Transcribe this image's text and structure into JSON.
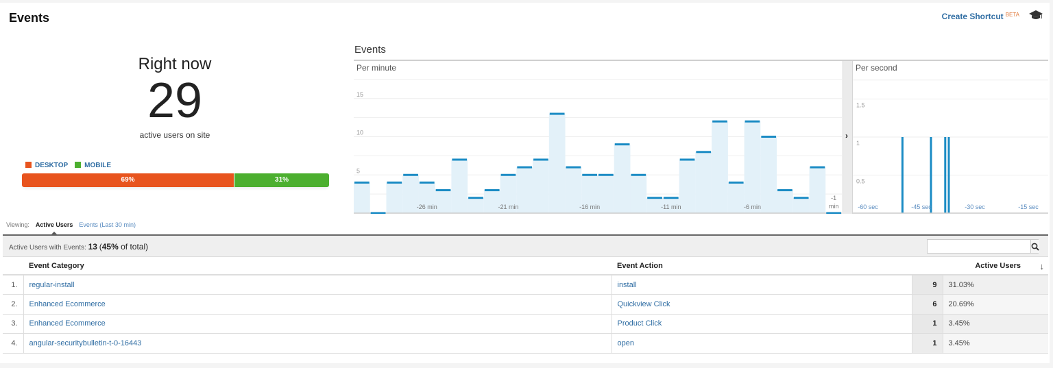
{
  "header": {
    "title": "Events",
    "shortcut_label": "Create Shortcut",
    "shortcut_badge": "BETA",
    "education_icon": "graduation-cap-icon"
  },
  "right_now": {
    "label": "Right now",
    "count": "29",
    "subtitle": "active users on site"
  },
  "devices": {
    "legend": [
      {
        "label": "DESKTOP",
        "color": "#e8541e"
      },
      {
        "label": "MOBILE",
        "color": "#4caf2f"
      }
    ],
    "segments": [
      {
        "label": "69%",
        "percent": 69,
        "color": "#e8541e"
      },
      {
        "label": "31%",
        "percent": 31,
        "color": "#4caf2f"
      }
    ]
  },
  "chart_data": [
    {
      "type": "bar",
      "title": "Events",
      "subtitle": "Per minute",
      "xlabel": "",
      "ylabel": "",
      "ylim": [
        0,
        20
      ],
      "yticks": [
        5,
        10,
        15
      ],
      "grid": true,
      "x_tick_labels": [
        "-26 min",
        "-21 min",
        "-16 min",
        "-11 min",
        "-6 min",
        "-1 min"
      ],
      "categories": [
        "-30",
        "-29",
        "-28",
        "-27",
        "-26",
        "-25",
        "-24",
        "-23",
        "-22",
        "-21",
        "-20",
        "-19",
        "-18",
        "-17",
        "-16",
        "-15",
        "-14",
        "-13",
        "-12",
        "-11",
        "-10",
        "-9",
        "-8",
        "-7",
        "-6",
        "-5",
        "-4",
        "-3",
        "-2",
        "-1"
      ],
      "values": [
        4,
        0,
        4,
        5,
        4,
        3,
        7,
        2,
        3,
        5,
        6,
        7,
        13,
        6,
        5,
        5,
        9,
        5,
        2,
        2,
        7,
        8,
        12,
        4,
        12,
        10,
        3,
        2,
        6,
        0
      ],
      "color": "#1a8bc4",
      "fill": "#e3f1f9"
    },
    {
      "type": "bar",
      "title": "",
      "subtitle": "Per second",
      "ylim": [
        0,
        2
      ],
      "yticks": [
        0.5,
        1,
        1.5
      ],
      "grid": true,
      "x_tick_labels": [
        "-60 sec",
        "-45 sec",
        "-30 sec",
        "-15 sec"
      ],
      "x": [
        -53,
        -45,
        -41,
        -40
      ],
      "values": [
        1,
        1,
        1,
        1
      ],
      "color": "#1a8bc4"
    }
  ],
  "chart": {
    "title": "Events",
    "per_minute_label": "Per minute",
    "per_second_label": "Per second",
    "expand_icon": "chevron-right-icon"
  },
  "viewing": {
    "label": "Viewing:",
    "tabs": [
      {
        "label": "Active Users",
        "active": true
      },
      {
        "label": "Events (Last 30 min)",
        "active": false
      }
    ]
  },
  "summary": {
    "label": "Active Users with Events:",
    "count": "13",
    "pct": "45%",
    "pct_suffix": "of total",
    "search_placeholder": ""
  },
  "table": {
    "columns": [
      "Event Category",
      "Event Action",
      "Active Users"
    ],
    "rows": [
      {
        "idx": "1.",
        "category": "regular-install",
        "action": "install",
        "users": "9",
        "pct": "31.03%"
      },
      {
        "idx": "2.",
        "category": "Enhanced Ecommerce",
        "action": "Quickview Click",
        "users": "6",
        "pct": "20.69%"
      },
      {
        "idx": "3.",
        "category": "Enhanced Ecommerce",
        "action": "Product Click",
        "users": "1",
        "pct": "3.45%"
      },
      {
        "idx": "4.",
        "category": "angular-securitybulletin-t-0-16443",
        "action": "open",
        "users": "1",
        "pct": "3.45%"
      }
    ]
  }
}
